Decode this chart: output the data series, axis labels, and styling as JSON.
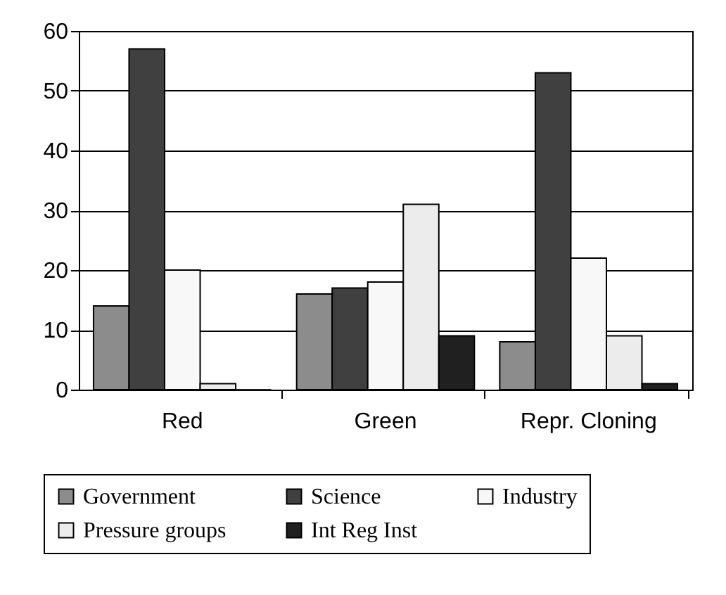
{
  "chart_data": {
    "type": "bar",
    "categories": [
      "Red",
      "Green",
      "Repr. Cloning"
    ],
    "series": [
      {
        "name": "Government",
        "color": "#8c8c8c",
        "values": [
          14,
          16,
          8
        ]
      },
      {
        "name": "Science",
        "color": "#404040",
        "values": [
          57,
          17,
          53
        ]
      },
      {
        "name": "Industry",
        "color": "#f8f8f8",
        "values": [
          20,
          18,
          22
        ]
      },
      {
        "name": "Pressure groups",
        "color": "#ececec",
        "values": [
          1,
          31,
          9
        ]
      },
      {
        "name": "Int Reg Inst",
        "color": "#202020",
        "values": [
          0,
          9,
          1
        ]
      }
    ],
    "ylim": [
      0,
      60
    ],
    "yticks": [
      0,
      10,
      20,
      30,
      40,
      50,
      60
    ],
    "grid": "y",
    "legend": "bottom"
  }
}
